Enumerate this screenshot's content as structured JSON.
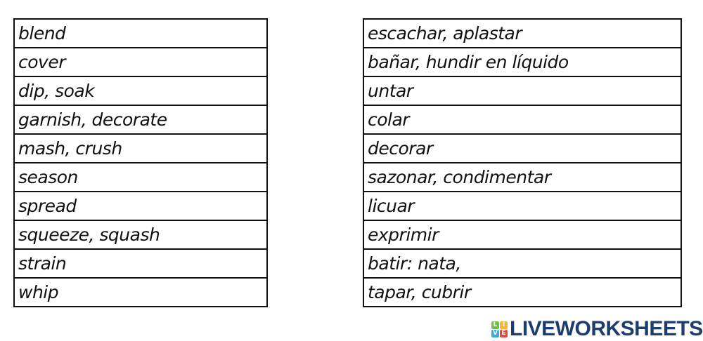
{
  "left_column": [
    "blend",
    "cover",
    "dip, soak",
    "garnish, decorate",
    "mash, crush",
    "season",
    "spread",
    "squeeze, squash",
    "strain",
    "whip"
  ],
  "right_column": [
    "escachar, aplastar",
    "bañar, hundir en líquido",
    "untar",
    "colar",
    "decorar",
    "sazonar, condimentar",
    "licuar",
    "exprimir",
    "batir: nata,",
    "tapar, cubrir"
  ],
  "logo": {
    "text": "LIVEWORKSHEETS",
    "tiles": [
      "L",
      "I",
      "V",
      "E"
    ],
    "tile_colors": [
      "#6fbf4a",
      "#3fa9d8",
      "#5b8fd6",
      "#e2483d"
    ],
    "text_color": "#1d3d6e"
  }
}
